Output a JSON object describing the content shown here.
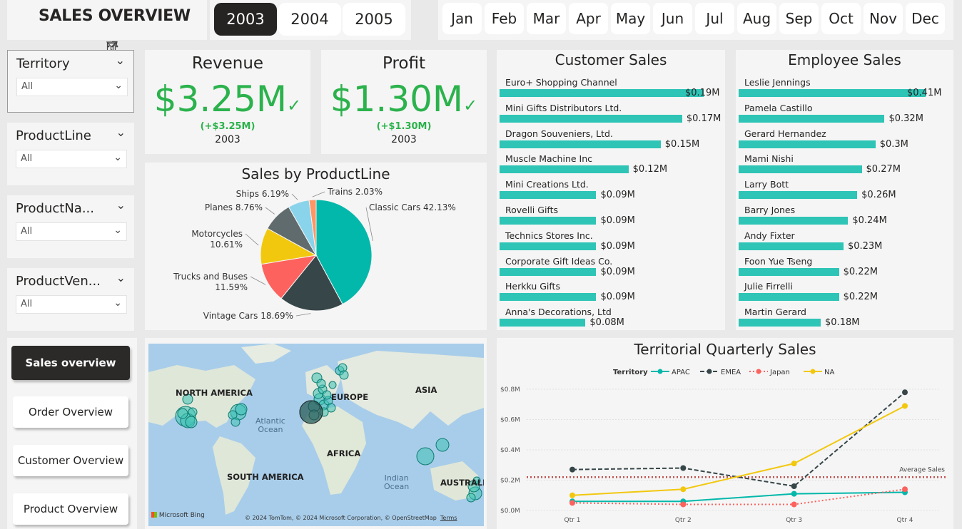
{
  "header": {
    "title": "SALES OVERVIEW"
  },
  "years": [
    {
      "label": "2003",
      "selected": true
    },
    {
      "label": "2004",
      "selected": false
    },
    {
      "label": "2005",
      "selected": false
    }
  ],
  "months": [
    "Jan",
    "Feb",
    "Mar",
    "Apr",
    "May",
    "Jun",
    "Jul",
    "Aug",
    "Sep",
    "Oct",
    "Nov",
    "Dec"
  ],
  "slicers": {
    "territory": {
      "label": "Territory",
      "value": "All"
    },
    "productline": {
      "label": "ProductLine",
      "value": "All"
    },
    "productname": {
      "label": "ProductNa...",
      "value": "All"
    },
    "productvendor": {
      "label": "ProductVen...",
      "value": "All"
    }
  },
  "kpis": {
    "revenue": {
      "title": "Revenue",
      "value": "$3.25M",
      "diff": "(+$3.25M)",
      "year": "2003"
    },
    "profit": {
      "title": "Profit",
      "value": "$1.30M",
      "diff": "(+$1.30M)",
      "year": "2003"
    }
  },
  "customer_sales": {
    "title": "Customer Sales",
    "items": [
      {
        "name": "Euro+ Shopping Channel",
        "value": 0.19,
        "label": "$0.19M"
      },
      {
        "name": "Mini Gifts Distributors Ltd.",
        "value": 0.17,
        "label": "$0.17M"
      },
      {
        "name": "Dragon Souveniers, Ltd.",
        "value": 0.15,
        "label": "$0.15M"
      },
      {
        "name": "Muscle Machine Inc",
        "value": 0.12,
        "label": "$0.12M"
      },
      {
        "name": "Mini Creations Ltd.",
        "value": 0.09,
        "label": "$0.09M"
      },
      {
        "name": "Rovelli Gifts",
        "value": 0.09,
        "label": "$0.09M"
      },
      {
        "name": "Technics Stores Inc.",
        "value": 0.09,
        "label": "$0.09M"
      },
      {
        "name": "Corporate Gift Ideas Co.",
        "value": 0.09,
        "label": "$0.09M"
      },
      {
        "name": "Herkku Gifts",
        "value": 0.09,
        "label": "$0.09M"
      },
      {
        "name": "Anna's Decorations, Ltd",
        "value": 0.08,
        "label": "$0.08M"
      }
    ]
  },
  "employee_sales": {
    "title": "Employee Sales",
    "items": [
      {
        "name": "Leslie Jennings",
        "value": 0.41,
        "label": "$0.41M"
      },
      {
        "name": "Pamela Castillo",
        "value": 0.32,
        "label": "$0.32M"
      },
      {
        "name": "Gerard Hernandez",
        "value": 0.3,
        "label": "$0.3M"
      },
      {
        "name": "Mami Nishi",
        "value": 0.27,
        "label": "$0.27M"
      },
      {
        "name": "Larry Bott",
        "value": 0.26,
        "label": "$0.26M"
      },
      {
        "name": "Barry Jones",
        "value": 0.24,
        "label": "$0.24M"
      },
      {
        "name": "Andy Fixter",
        "value": 0.23,
        "label": "$0.23M"
      },
      {
        "name": "Foon Yue Tseng",
        "value": 0.22,
        "label": "$0.22M"
      },
      {
        "name": "Julie Firrelli",
        "value": 0.22,
        "label": "$0.22M"
      },
      {
        "name": "Martin Gerard",
        "value": 0.18,
        "label": "$0.18M"
      }
    ]
  },
  "pie": {
    "title": "Sales by ProductLine",
    "slices": [
      {
        "name": "Classic Cars",
        "label": "Classic Cars 42.13%",
        "value": 42.13,
        "color": "#01b8aa"
      },
      {
        "name": "Vintage Cars",
        "label": "Vintage Cars 18.69%",
        "value": 18.69,
        "color": "#374649"
      },
      {
        "name": "Trucks and Buses",
        "label": "Trucks and Buses",
        "pct": "11.59%",
        "value": 11.59,
        "color": "#fd625e"
      },
      {
        "name": "Motorcycles",
        "label": "Motorcycles",
        "pct": "10.61%",
        "value": 10.61,
        "color": "#f2c80f"
      },
      {
        "name": "Planes",
        "label": "Planes 8.76%",
        "value": 8.76,
        "color": "#5f6b6d"
      },
      {
        "name": "Ships",
        "label": "Ships 6.19%",
        "value": 6.19,
        "color": "#8ad4eb"
      },
      {
        "name": "Trains",
        "label": "Trains 2.03%",
        "value": 2.03,
        "color": "#fe9666"
      }
    ]
  },
  "nav": {
    "sales": "Sales overview",
    "order": "Order Overview",
    "customer": "Customer Overview",
    "product": "Product Overview"
  },
  "map": {
    "labels": {
      "na": "NORTH AMERICA",
      "eu": "EUROPE",
      "asia": "ASIA",
      "africa": "AFRICA",
      "sa": "SOUTH AMERICA",
      "au": "AUSTRALIA"
    },
    "oceans": {
      "atlantic": "Atlantic\nOcean",
      "indian": "Indian\nOcean"
    },
    "bing": "Microsoft Bing",
    "copyright": "© 2024 TomTom, © 2024 Microsoft Corporation, © OpenStreetMap",
    "terms": "Terms"
  },
  "chart_data": {
    "type": "line",
    "title": "Territorial Quarterly Sales",
    "legend_title": "Territory",
    "categories": [
      "Qtr 1",
      "Qtr 2",
      "Qtr 3",
      "Qtr 4"
    ],
    "series": [
      {
        "name": "APAC",
        "values": [
          0.06,
          0.06,
          0.11,
          0.12
        ],
        "color": "#01b8aa",
        "dash": "solid"
      },
      {
        "name": "EMEA",
        "values": [
          0.27,
          0.28,
          0.16,
          0.78
        ],
        "color": "#374649",
        "dash": "dashed"
      },
      {
        "name": "Japan",
        "values": [
          0.05,
          0.04,
          0.04,
          0.14
        ],
        "color": "#fd625e",
        "dash": "dotted"
      },
      {
        "name": "NA",
        "values": [
          0.1,
          0.14,
          0.31,
          0.69
        ],
        "color": "#f2c80f",
        "dash": "solid"
      }
    ],
    "ylim": [
      0,
      0.8
    ],
    "yticks": [
      "$0.0M",
      "$0.2M",
      "$0.4M",
      "$0.6M",
      "$0.8M"
    ],
    "yunit": "M",
    "average": {
      "label": "Average Sales",
      "value": 0.22,
      "color": "#c0504d"
    },
    "legend_position": "top-left",
    "grid": true
  }
}
